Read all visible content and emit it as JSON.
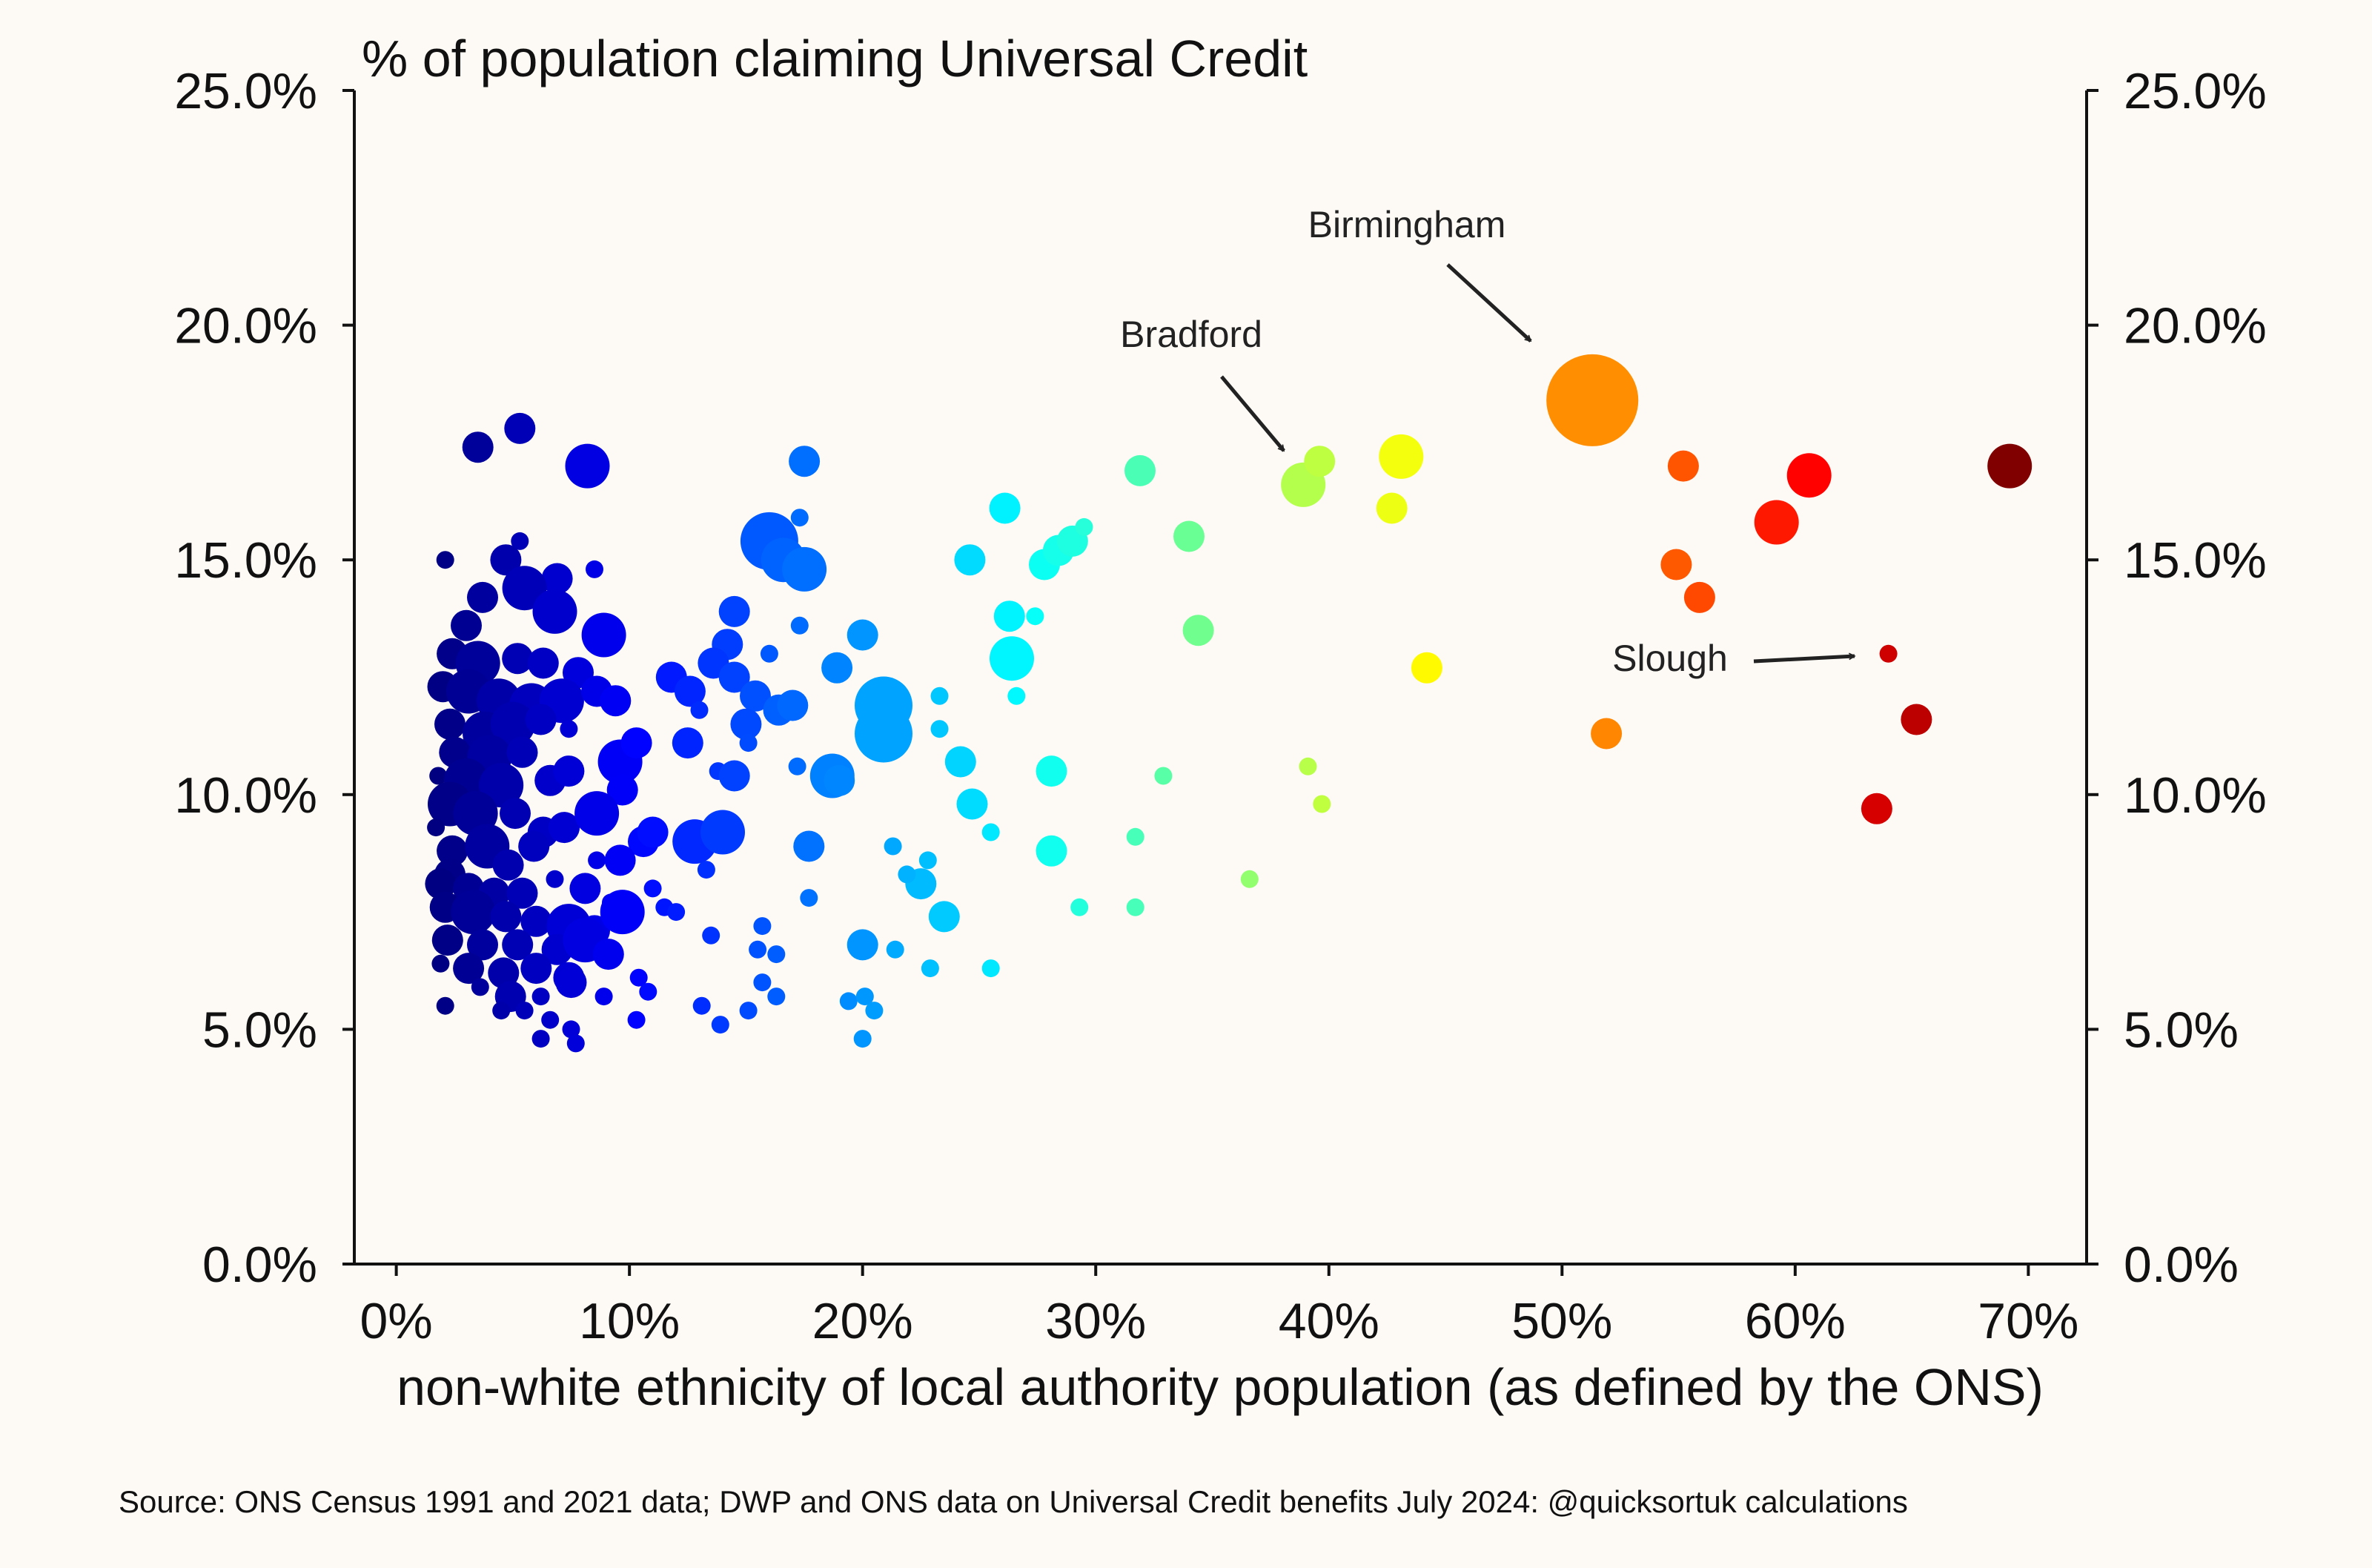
{
  "chart_data": {
    "type": "scatter",
    "title": "% of population claiming Universal Credit",
    "xlabel": "non-white ethnicity of local authority population (as defined by the ONS)",
    "ylabel": "",
    "xlim": [
      -1.8,
      72.5
    ],
    "ylim": [
      0,
      25
    ],
    "xticks": [
      0,
      10,
      20,
      30,
      40,
      50,
      60,
      70
    ],
    "xtick_labels": [
      "0%",
      "10%",
      "20%",
      "30%",
      "40%",
      "50%",
      "60%",
      "70%"
    ],
    "yticks": [
      0,
      5,
      10,
      15,
      20,
      25
    ],
    "ytick_labels": [
      "0.0%",
      "5.0%",
      "10.0%",
      "15.0%",
      "20.0%",
      "25.0%"
    ],
    "right_axis_mirrored": true,
    "grid": false,
    "colormap": "jet (by x value)",
    "size_encoding": "point size scales with local authority population",
    "annotations": [
      {
        "text": "Birmingham",
        "x": 51.3,
        "y": 18.4
      },
      {
        "text": "Bradford",
        "x": 38.9,
        "y": 16.6
      },
      {
        "text": "Slough",
        "x": 64.0,
        "y": 13.0
      }
    ],
    "source": "Source: ONS Census 1991 and 2021 data; DWP and ONS data on Universal Credit benefits July 2024: @quicksortuk calculations",
    "points": [
      {
        "x": 5.3,
        "y": 17.8,
        "s": 2
      },
      {
        "x": 3.5,
        "y": 17.4,
        "s": 2
      },
      {
        "x": 8.2,
        "y": 17.0,
        "s": 3
      },
      {
        "x": 2.1,
        "y": 15.0,
        "s": 1
      },
      {
        "x": 5.3,
        "y": 15.4,
        "s": 1
      },
      {
        "x": 4.7,
        "y": 15.0,
        "s": 2
      },
      {
        "x": 6.9,
        "y": 14.6,
        "s": 2
      },
      {
        "x": 8.5,
        "y": 14.8,
        "s": 1
      },
      {
        "x": 3.7,
        "y": 14.2,
        "s": 2
      },
      {
        "x": 5.5,
        "y": 14.4,
        "s": 3
      },
      {
        "x": 6.8,
        "y": 13.9,
        "s": 3
      },
      {
        "x": 8.9,
        "y": 13.4,
        "s": 3
      },
      {
        "x": 3.0,
        "y": 13.6,
        "s": 2
      },
      {
        "x": 2.4,
        "y": 13.0,
        "s": 2
      },
      {
        "x": 3.5,
        "y": 12.8,
        "s": 3
      },
      {
        "x": 5.2,
        "y": 12.9,
        "s": 2
      },
      {
        "x": 6.3,
        "y": 12.8,
        "s": 2
      },
      {
        "x": 7.8,
        "y": 12.6,
        "s": 2
      },
      {
        "x": 2.0,
        "y": 12.3,
        "s": 2
      },
      {
        "x": 3.1,
        "y": 12.2,
        "s": 3
      },
      {
        "x": 4.4,
        "y": 12.0,
        "s": 3
      },
      {
        "x": 5.8,
        "y": 11.9,
        "s": 3
      },
      {
        "x": 7.1,
        "y": 12.0,
        "s": 3
      },
      {
        "x": 8.6,
        "y": 12.2,
        "s": 2
      },
      {
        "x": 9.4,
        "y": 12.0,
        "s": 2
      },
      {
        "x": 2.3,
        "y": 11.5,
        "s": 2
      },
      {
        "x": 3.8,
        "y": 11.3,
        "s": 3
      },
      {
        "x": 5.0,
        "y": 11.5,
        "s": 3
      },
      {
        "x": 6.2,
        "y": 11.6,
        "s": 2
      },
      {
        "x": 7.4,
        "y": 11.4,
        "s": 1
      },
      {
        "x": 2.5,
        "y": 10.9,
        "s": 2
      },
      {
        "x": 4.0,
        "y": 10.8,
        "s": 3
      },
      {
        "x": 5.4,
        "y": 10.9,
        "s": 2
      },
      {
        "x": 9.6,
        "y": 10.7,
        "s": 3
      },
      {
        "x": 10.3,
        "y": 11.1,
        "s": 2
      },
      {
        "x": 1.8,
        "y": 10.4,
        "s": 1
      },
      {
        "x": 3.0,
        "y": 10.3,
        "s": 3
      },
      {
        "x": 4.5,
        "y": 10.2,
        "s": 3
      },
      {
        "x": 6.6,
        "y": 10.3,
        "s": 2
      },
      {
        "x": 7.4,
        "y": 10.5,
        "s": 2
      },
      {
        "x": 9.7,
        "y": 10.1,
        "s": 2
      },
      {
        "x": 2.3,
        "y": 9.8,
        "s": 3
      },
      {
        "x": 3.4,
        "y": 9.6,
        "s": 3
      },
      {
        "x": 5.1,
        "y": 9.6,
        "s": 2
      },
      {
        "x": 6.3,
        "y": 9.2,
        "s": 2
      },
      {
        "x": 7.2,
        "y": 9.3,
        "s": 2
      },
      {
        "x": 8.6,
        "y": 9.6,
        "s": 3
      },
      {
        "x": 10.6,
        "y": 9.0,
        "s": 2
      },
      {
        "x": 11.0,
        "y": 9.2,
        "s": 2
      },
      {
        "x": 1.7,
        "y": 9.3,
        "s": 1
      },
      {
        "x": 2.4,
        "y": 8.8,
        "s": 2
      },
      {
        "x": 3.9,
        "y": 8.9,
        "s": 3
      },
      {
        "x": 4.8,
        "y": 8.5,
        "s": 2
      },
      {
        "x": 5.9,
        "y": 8.9,
        "s": 2
      },
      {
        "x": 8.6,
        "y": 8.6,
        "s": 1
      },
      {
        "x": 9.6,
        "y": 8.6,
        "s": 2
      },
      {
        "x": 2.3,
        "y": 8.3,
        "s": 2
      },
      {
        "x": 1.9,
        "y": 8.1,
        "s": 2
      },
      {
        "x": 3.1,
        "y": 8.0,
        "s": 2
      },
      {
        "x": 4.2,
        "y": 7.9,
        "s": 2
      },
      {
        "x": 5.4,
        "y": 7.9,
        "s": 2
      },
      {
        "x": 6.8,
        "y": 8.2,
        "s": 1
      },
      {
        "x": 8.1,
        "y": 8.0,
        "s": 2
      },
      {
        "x": 9.2,
        "y": 7.7,
        "s": 1
      },
      {
        "x": 11.0,
        "y": 8.0,
        "s": 1
      },
      {
        "x": 2.1,
        "y": 7.6,
        "s": 2
      },
      {
        "x": 3.3,
        "y": 7.5,
        "s": 3
      },
      {
        "x": 4.7,
        "y": 7.4,
        "s": 2
      },
      {
        "x": 6.0,
        "y": 7.3,
        "s": 2
      },
      {
        "x": 7.4,
        "y": 7.2,
        "s": 3
      },
      {
        "x": 8.5,
        "y": 7.1,
        "s": 2
      },
      {
        "x": 9.7,
        "y": 7.5,
        "s": 3
      },
      {
        "x": 11.5,
        "y": 7.6,
        "s": 1
      },
      {
        "x": 2.2,
        "y": 6.9,
        "s": 2
      },
      {
        "x": 3.7,
        "y": 6.8,
        "s": 2
      },
      {
        "x": 5.2,
        "y": 6.8,
        "s": 2
      },
      {
        "x": 6.9,
        "y": 6.7,
        "s": 2
      },
      {
        "x": 8.1,
        "y": 6.9,
        "s": 3
      },
      {
        "x": 9.1,
        "y": 6.6,
        "s": 2
      },
      {
        "x": 1.9,
        "y": 6.4,
        "s": 1
      },
      {
        "x": 3.1,
        "y": 6.3,
        "s": 2
      },
      {
        "x": 4.6,
        "y": 6.2,
        "s": 2
      },
      {
        "x": 6.0,
        "y": 6.3,
        "s": 2
      },
      {
        "x": 7.4,
        "y": 6.1,
        "s": 2
      },
      {
        "x": 10.4,
        "y": 6.1,
        "s": 1
      },
      {
        "x": 3.6,
        "y": 5.9,
        "s": 1
      },
      {
        "x": 4.9,
        "y": 5.7,
        "s": 2
      },
      {
        "x": 6.2,
        "y": 5.7,
        "s": 1
      },
      {
        "x": 7.5,
        "y": 6.0,
        "s": 2
      },
      {
        "x": 8.9,
        "y": 5.7,
        "s": 1
      },
      {
        "x": 10.8,
        "y": 5.8,
        "s": 1
      },
      {
        "x": 2.1,
        "y": 5.5,
        "s": 1
      },
      {
        "x": 4.5,
        "y": 5.4,
        "s": 1
      },
      {
        "x": 5.5,
        "y": 5.4,
        "s": 1
      },
      {
        "x": 6.6,
        "y": 5.2,
        "s": 1
      },
      {
        "x": 10.3,
        "y": 5.2,
        "s": 1
      },
      {
        "x": 7.5,
        "y": 5.0,
        "s": 1
      },
      {
        "x": 6.2,
        "y": 4.8,
        "s": 1
      },
      {
        "x": 7.7,
        "y": 4.7,
        "s": 1
      },
      {
        "x": 16.0,
        "y": 15.4,
        "s": 4
      },
      {
        "x": 16.6,
        "y": 15.0,
        "s": 3
      },
      {
        "x": 17.5,
        "y": 17.1,
        "s": 2
      },
      {
        "x": 17.5,
        "y": 14.8,
        "s": 3
      },
      {
        "x": 17.3,
        "y": 15.9,
        "s": 1
      },
      {
        "x": 14.5,
        "y": 13.9,
        "s": 2
      },
      {
        "x": 17.3,
        "y": 13.6,
        "s": 1
      },
      {
        "x": 16.0,
        "y": 13.0,
        "s": 1
      },
      {
        "x": 14.2,
        "y": 13.2,
        "s": 2
      },
      {
        "x": 13.6,
        "y": 12.8,
        "s": 2
      },
      {
        "x": 11.8,
        "y": 12.5,
        "s": 2
      },
      {
        "x": 12.6,
        "y": 12.2,
        "s": 2
      },
      {
        "x": 14.5,
        "y": 12.5,
        "s": 2
      },
      {
        "x": 15.4,
        "y": 12.1,
        "s": 2
      },
      {
        "x": 16.4,
        "y": 11.8,
        "s": 2
      },
      {
        "x": 17.0,
        "y": 11.9,
        "s": 2
      },
      {
        "x": 13.0,
        "y": 11.8,
        "s": 1
      },
      {
        "x": 15.0,
        "y": 11.5,
        "s": 2
      },
      {
        "x": 15.1,
        "y": 11.1,
        "s": 1
      },
      {
        "x": 12.5,
        "y": 11.1,
        "s": 2
      },
      {
        "x": 13.8,
        "y": 10.5,
        "s": 1
      },
      {
        "x": 14.5,
        "y": 10.4,
        "s": 2
      },
      {
        "x": 17.2,
        "y": 10.6,
        "s": 1
      },
      {
        "x": 12.8,
        "y": 9.0,
        "s": 3
      },
      {
        "x": 14.0,
        "y": 9.2,
        "s": 3
      },
      {
        "x": 13.3,
        "y": 8.4,
        "s": 1
      },
      {
        "x": 12.0,
        "y": 7.5,
        "s": 1
      },
      {
        "x": 13.5,
        "y": 7.0,
        "s": 1
      },
      {
        "x": 15.7,
        "y": 7.2,
        "s": 1
      },
      {
        "x": 15.5,
        "y": 6.7,
        "s": 1
      },
      {
        "x": 16.3,
        "y": 6.6,
        "s": 1
      },
      {
        "x": 15.7,
        "y": 6.0,
        "s": 1
      },
      {
        "x": 16.3,
        "y": 5.7,
        "s": 1
      },
      {
        "x": 13.1,
        "y": 5.5,
        "s": 1
      },
      {
        "x": 15.1,
        "y": 5.4,
        "s": 1
      },
      {
        "x": 13.9,
        "y": 5.1,
        "s": 1
      },
      {
        "x": 17.7,
        "y": 7.8,
        "s": 1
      },
      {
        "x": 17.7,
        "y": 8.9,
        "s": 2
      },
      {
        "x": 18.7,
        "y": 10.4,
        "s": 3
      },
      {
        "x": 19.0,
        "y": 10.3,
        "s": 2
      },
      {
        "x": 18.9,
        "y": 12.7,
        "s": 2
      },
      {
        "x": 20.0,
        "y": 13.4,
        "s": 2
      },
      {
        "x": 20.9,
        "y": 11.9,
        "s": 4
      },
      {
        "x": 20.9,
        "y": 11.3,
        "s": 4
      },
      {
        "x": 23.3,
        "y": 12.1,
        "s": 1
      },
      {
        "x": 23.3,
        "y": 11.4,
        "s": 1
      },
      {
        "x": 24.2,
        "y": 10.7,
        "s": 2
      },
      {
        "x": 24.6,
        "y": 15.0,
        "s": 2
      },
      {
        "x": 26.1,
        "y": 16.1,
        "s": 2
      },
      {
        "x": 26.3,
        "y": 13.8,
        "s": 2
      },
      {
        "x": 26.4,
        "y": 12.9,
        "s": 3
      },
      {
        "x": 26.6,
        "y": 12.1,
        "s": 1
      },
      {
        "x": 27.4,
        "y": 13.8,
        "s": 1
      },
      {
        "x": 27.8,
        "y": 14.9,
        "s": 2
      },
      {
        "x": 28.4,
        "y": 15.2,
        "s": 2
      },
      {
        "x": 29.0,
        "y": 15.4,
        "s": 2
      },
      {
        "x": 29.5,
        "y": 15.7,
        "s": 1
      },
      {
        "x": 24.7,
        "y": 9.8,
        "s": 2
      },
      {
        "x": 25.5,
        "y": 9.2,
        "s": 1
      },
      {
        "x": 20.0,
        "y": 6.8,
        "s": 2
      },
      {
        "x": 21.4,
        "y": 6.7,
        "s": 1
      },
      {
        "x": 22.9,
        "y": 6.3,
        "s": 1
      },
      {
        "x": 23.5,
        "y": 7.4,
        "s": 2
      },
      {
        "x": 22.5,
        "y": 8.1,
        "s": 2
      },
      {
        "x": 22.8,
        "y": 8.6,
        "s": 1
      },
      {
        "x": 21.9,
        "y": 8.3,
        "s": 1
      },
      {
        "x": 21.3,
        "y": 8.9,
        "s": 1
      },
      {
        "x": 19.4,
        "y": 5.6,
        "s": 1
      },
      {
        "x": 20.1,
        "y": 5.7,
        "s": 1
      },
      {
        "x": 20.5,
        "y": 5.4,
        "s": 1
      },
      {
        "x": 20.0,
        "y": 4.8,
        "s": 1
      },
      {
        "x": 25.5,
        "y": 6.3,
        "s": 1
      },
      {
        "x": 28.1,
        "y": 10.5,
        "s": 2
      },
      {
        "x": 28.1,
        "y": 8.8,
        "s": 2
      },
      {
        "x": 29.3,
        "y": 7.6,
        "s": 1
      },
      {
        "x": 31.7,
        "y": 9.1,
        "s": 1
      },
      {
        "x": 31.7,
        "y": 7.6,
        "s": 1
      },
      {
        "x": 32.9,
        "y": 10.4,
        "s": 1
      },
      {
        "x": 31.9,
        "y": 16.9,
        "s": 2
      },
      {
        "x": 34.0,
        "y": 15.5,
        "s": 2
      },
      {
        "x": 34.4,
        "y": 13.5,
        "s": 2
      },
      {
        "x": 36.6,
        "y": 8.2,
        "s": 1
      },
      {
        "x": 38.9,
        "y": 16.6,
        "s": 3
      },
      {
        "x": 39.6,
        "y": 17.1,
        "s": 2
      },
      {
        "x": 39.1,
        "y": 10.6,
        "s": 1
      },
      {
        "x": 39.7,
        "y": 9.8,
        "s": 1
      },
      {
        "x": 43.1,
        "y": 17.2,
        "s": 3
      },
      {
        "x": 42.7,
        "y": 16.1,
        "s": 2
      },
      {
        "x": 44.2,
        "y": 12.7,
        "s": 2
      },
      {
        "x": 51.3,
        "y": 18.4,
        "s": 5
      },
      {
        "x": 55.2,
        "y": 17.0,
        "s": 2
      },
      {
        "x": 51.9,
        "y": 11.3,
        "s": 2
      },
      {
        "x": 54.9,
        "y": 14.9,
        "s": 2
      },
      {
        "x": 55.9,
        "y": 14.2,
        "s": 2
      },
      {
        "x": 59.2,
        "y": 15.8,
        "s": 3
      },
      {
        "x": 60.6,
        "y": 16.8,
        "s": 3
      },
      {
        "x": 64.0,
        "y": 13.0,
        "s": 1
      },
      {
        "x": 65.2,
        "y": 11.6,
        "s": 2
      },
      {
        "x": 63.5,
        "y": 9.7,
        "s": 2
      },
      {
        "x": 69.2,
        "y": 17.0,
        "s": 3
      }
    ]
  }
}
